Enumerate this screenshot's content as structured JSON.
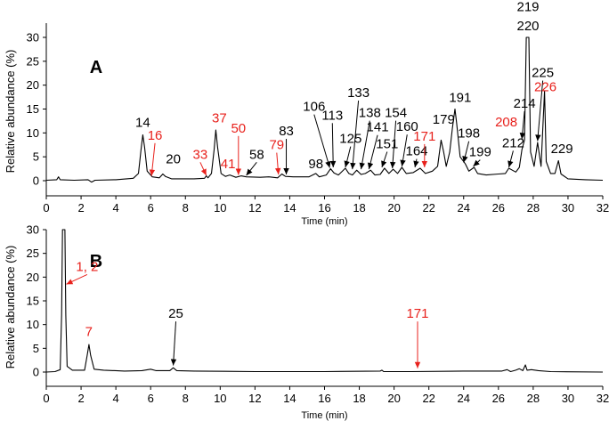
{
  "colors": {
    "trace": "#000000",
    "black_label": "#000000",
    "red_label": "#e8211c"
  },
  "chart_data": [
    {
      "type": "line",
      "panel_label": "A",
      "xlabel": "Time (min)",
      "ylabel": "Relative abundance (%)",
      "xlim": [
        0,
        32
      ],
      "ylim": [
        -3,
        30
      ],
      "xticks": [
        "0",
        "2",
        "4",
        "6",
        "8",
        "10",
        "12",
        "14",
        "16",
        "18",
        "20",
        "22",
        "24",
        "26",
        "28",
        "30",
        "32"
      ],
      "yticks": [
        "0",
        "5",
        "10",
        "15",
        "20",
        "25",
        "30"
      ],
      "grid": false,
      "trace_points": [
        [
          0.0,
          0.1
        ],
        [
          0.6,
          0.2
        ],
        [
          0.7,
          0.8
        ],
        [
          0.8,
          0.2
        ],
        [
          1.6,
          0.1
        ],
        [
          2.4,
          0.2
        ],
        [
          2.6,
          -0.3
        ],
        [
          2.8,
          0.1
        ],
        [
          4.0,
          0.2
        ],
        [
          5.0,
          0.5
        ],
        [
          5.3,
          1.5
        ],
        [
          5.45,
          6.5
        ],
        [
          5.55,
          9.6
        ],
        [
          5.65,
          7.0
        ],
        [
          5.8,
          2.0
        ],
        [
          6.1,
          0.8
        ],
        [
          6.5,
          0.6
        ],
        [
          6.7,
          1.4
        ],
        [
          6.85,
          0.9
        ],
        [
          7.2,
          0.4
        ],
        [
          8.5,
          0.4
        ],
        [
          9.1,
          0.5
        ],
        [
          9.2,
          1.0
        ],
        [
          9.3,
          0.6
        ],
        [
          9.5,
          1.5
        ],
        [
          9.65,
          6.5
        ],
        [
          9.75,
          10.6
        ],
        [
          9.85,
          7.0
        ],
        [
          10.05,
          1.5
        ],
        [
          10.3,
          0.9
        ],
        [
          10.55,
          1.2
        ],
        [
          10.9,
          0.7
        ],
        [
          11.2,
          1.0
        ],
        [
          11.5,
          0.8
        ],
        [
          12.3,
          0.7
        ],
        [
          12.8,
          0.8
        ],
        [
          13.3,
          0.6
        ],
        [
          13.55,
          1.4
        ],
        [
          13.75,
          0.9
        ],
        [
          14.2,
          0.8
        ],
        [
          15.1,
          0.8
        ],
        [
          15.5,
          1.5
        ],
        [
          15.7,
          0.8
        ],
        [
          16.1,
          1.2
        ],
        [
          16.35,
          2.5
        ],
        [
          16.55,
          1.6
        ],
        [
          16.8,
          1.2
        ],
        [
          17.2,
          2.6
        ],
        [
          17.4,
          1.5
        ],
        [
          17.6,
          1.2
        ],
        [
          17.85,
          2.2
        ],
        [
          18.1,
          1.3
        ],
        [
          18.35,
          1.5
        ],
        [
          18.65,
          2.2
        ],
        [
          18.9,
          1.2
        ],
        [
          19.2,
          1.3
        ],
        [
          19.45,
          2.6
        ],
        [
          19.7,
          1.5
        ],
        [
          19.95,
          2.4
        ],
        [
          20.2,
          1.5
        ],
        [
          20.45,
          2.8
        ],
        [
          20.7,
          1.5
        ],
        [
          21.1,
          1.7
        ],
        [
          21.5,
          2.6
        ],
        [
          21.8,
          1.5
        ],
        [
          22.2,
          2.0
        ],
        [
          22.5,
          3.0
        ],
        [
          22.7,
          8.5
        ],
        [
          22.85,
          6.0
        ],
        [
          23.0,
          3.0
        ],
        [
          23.2,
          6.0
        ],
        [
          23.35,
          11.0
        ],
        [
          23.5,
          15.0
        ],
        [
          23.6,
          12.0
        ],
        [
          23.8,
          5.0
        ],
        [
          24.1,
          3.5
        ],
        [
          24.3,
          2.0
        ],
        [
          24.6,
          2.8
        ],
        [
          24.8,
          1.5
        ],
        [
          25.3,
          1.2
        ],
        [
          26.0,
          1.4
        ],
        [
          26.4,
          1.5
        ],
        [
          26.6,
          2.6
        ],
        [
          26.8,
          2.2
        ],
        [
          27.0,
          1.8
        ],
        [
          27.2,
          2.8
        ],
        [
          27.35,
          6.5
        ],
        [
          27.5,
          8.5
        ],
        [
          27.6,
          30
        ],
        [
          27.75,
          30
        ],
        [
          27.85,
          6.0
        ],
        [
          28.05,
          3.0
        ],
        [
          28.25,
          8.0
        ],
        [
          28.45,
          3.0
        ],
        [
          28.65,
          18.8
        ],
        [
          28.75,
          4.0
        ],
        [
          29.0,
          1.5
        ],
        [
          29.25,
          1.5
        ],
        [
          29.45,
          4.2
        ],
        [
          29.6,
          1.4
        ],
        [
          30.0,
          0.4
        ],
        [
          31.0,
          0.2
        ],
        [
          32.0,
          0.1
        ]
      ],
      "annotations": [
        {
          "text": "14",
          "color": "black",
          "lx": 5.55,
          "ly": 11.3,
          "arrow": false
        },
        {
          "text": "16",
          "color": "red",
          "lx": 6.25,
          "ly": 8.6,
          "arrow": true,
          "ax": 6.05,
          "ay": 1.0
        },
        {
          "text": "20",
          "color": "black",
          "lx": 7.3,
          "ly": 3.6,
          "arrow": false
        },
        {
          "text": "33",
          "color": "red",
          "lx": 8.85,
          "ly": 4.6,
          "arrow": true,
          "ax": 9.2,
          "ay": 1.1
        },
        {
          "text": "37",
          "color": "red",
          "lx": 9.95,
          "ly": 12.2,
          "arrow": false
        },
        {
          "text": "41",
          "color": "red",
          "lx": 10.45,
          "ly": 2.6,
          "arrow": false
        },
        {
          "text": "50",
          "color": "red",
          "lx": 11.05,
          "ly": 10.1,
          "arrow": true,
          "ax": 11.05,
          "ay": 1.2
        },
        {
          "text": "58",
          "color": "black",
          "lx": 12.1,
          "ly": 4.6,
          "arrow": true,
          "ax": 11.5,
          "ay": 1.1
        },
        {
          "text": "79",
          "color": "red",
          "lx": 13.25,
          "ly": 6.6,
          "arrow": true,
          "ax": 13.35,
          "ay": 1.3
        },
        {
          "text": "83",
          "color": "black",
          "lx": 13.8,
          "ly": 9.5,
          "arrow": true,
          "ax": 13.8,
          "ay": 1.3
        },
        {
          "text": "98",
          "color": "black",
          "lx": 15.5,
          "ly": 2.6,
          "arrow": false
        },
        {
          "text": "106",
          "color": "black",
          "lx": 15.4,
          "ly": 14.6,
          "arrow": true,
          "ax": 16.3,
          "ay": 2.7
        },
        {
          "text": "113",
          "color": "black",
          "lx": 16.45,
          "ly": 12.8,
          "arrow": true,
          "ax": 16.5,
          "ay": 2.8
        },
        {
          "text": "125",
          "color": "black",
          "lx": 17.5,
          "ly": 7.9,
          "arrow": true,
          "ax": 17.2,
          "ay": 2.8
        },
        {
          "text": "133",
          "color": "black",
          "lx": 17.95,
          "ly": 17.5,
          "arrow": true,
          "ax": 17.6,
          "ay": 2.4
        },
        {
          "text": "138",
          "color": "black",
          "lx": 18.6,
          "ly": 13.3,
          "arrow": true,
          "ax": 18.1,
          "ay": 2.4
        },
        {
          "text": "141",
          "color": "black",
          "lx": 19.05,
          "ly": 10.3,
          "arrow": true,
          "ax": 18.55,
          "ay": 2.4
        },
        {
          "text": "151",
          "color": "black",
          "lx": 19.6,
          "ly": 6.8,
          "arrow": true,
          "ax": 19.3,
          "ay": 2.8
        },
        {
          "text": "154",
          "color": "black",
          "lx": 20.1,
          "ly": 13.3,
          "arrow": true,
          "ax": 19.9,
          "ay": 2.6
        },
        {
          "text": "160",
          "color": "black",
          "lx": 20.75,
          "ly": 10.4,
          "arrow": true,
          "ax": 20.45,
          "ay": 3.0
        },
        {
          "text": "164",
          "color": "black",
          "lx": 21.3,
          "ly": 5.3,
          "arrow": true,
          "ax": 21.2,
          "ay": 2.8
        },
        {
          "text": "171",
          "color": "red",
          "lx": 21.75,
          "ly": 8.4,
          "arrow": true,
          "ax": 21.75,
          "ay": 2.8
        },
        {
          "text": "179",
          "color": "black",
          "lx": 22.85,
          "ly": 11.9,
          "arrow": false
        },
        {
          "text": "191",
          "color": "black",
          "lx": 23.8,
          "ly": 16.5,
          "arrow": false
        },
        {
          "text": "198",
          "color": "black",
          "lx": 24.3,
          "ly": 9.0,
          "arrow": true,
          "ax": 24.0,
          "ay": 3.8
        },
        {
          "text": "199",
          "color": "black",
          "lx": 24.95,
          "ly": 5.1,
          "arrow": true,
          "ax": 24.55,
          "ay": 3.0
        },
        {
          "text": "208",
          "color": "red",
          "lx": 26.45,
          "ly": 11.4,
          "arrow": false
        },
        {
          "text": "212",
          "color": "black",
          "lx": 26.85,
          "ly": 7.0,
          "arrow": true,
          "ax": 26.6,
          "ay": 2.8
        },
        {
          "text": "214",
          "color": "black",
          "lx": 27.5,
          "ly": 15.3,
          "arrow": true,
          "ax": 27.35,
          "ay": 8.7
        },
        {
          "text": "219",
          "color": "black",
          "lx": 27.7,
          "ly": 35.5,
          "arrow": false
        },
        {
          "text": "220",
          "color": "black",
          "lx": 27.7,
          "ly": 31.5,
          "arrow": false
        },
        {
          "text": "225",
          "color": "black",
          "lx": 28.55,
          "ly": 21.7,
          "arrow": true,
          "ax": 28.25,
          "ay": 8.3
        },
        {
          "text": "226",
          "color": "red",
          "lx": 28.7,
          "ly": 18.7,
          "arrow": false
        },
        {
          "text": "229",
          "color": "black",
          "lx": 29.65,
          "ly": 5.8,
          "arrow": false
        }
      ],
      "red_arrows": [
        [
          6.05,
          1.0
        ],
        [
          9.2,
          1.1
        ],
        [
          11.05,
          1.2
        ],
        [
          13.35,
          1.3
        ],
        [
          21.75,
          2.8
        ],
        [
          26.6,
          2.8
        ]
      ]
    },
    {
      "type": "line",
      "panel_label": "B",
      "xlabel": "Time (min)",
      "ylabel": "Relative abundance (%)",
      "xlim": [
        0,
        32
      ],
      "ylim": [
        -3,
        30
      ],
      "xticks": [
        "0",
        "2",
        "4",
        "6",
        "8",
        "10",
        "12",
        "14",
        "16",
        "18",
        "20",
        "22",
        "24",
        "26",
        "28",
        "30",
        "32"
      ],
      "yticks": [
        "0",
        "5",
        "10",
        "15",
        "20",
        "25",
        "30"
      ],
      "grid": false,
      "trace_points": [
        [
          0.0,
          0.0
        ],
        [
          0.5,
          0.1
        ],
        [
          0.8,
          0.5
        ],
        [
          0.88,
          12.0
        ],
        [
          0.93,
          30
        ],
        [
          1.07,
          30
        ],
        [
          1.12,
          12.0
        ],
        [
          1.2,
          1.2
        ],
        [
          1.5,
          0.4
        ],
        [
          2.2,
          0.4
        ],
        [
          2.35,
          3.5
        ],
        [
          2.45,
          5.8
        ],
        [
          2.55,
          3.5
        ],
        [
          2.75,
          0.6
        ],
        [
          3.3,
          0.4
        ],
        [
          4.5,
          0.2
        ],
        [
          5.5,
          0.3
        ],
        [
          6.0,
          0.6
        ],
        [
          6.3,
          0.3
        ],
        [
          7.1,
          0.3
        ],
        [
          7.3,
          0.9
        ],
        [
          7.5,
          0.3
        ],
        [
          8.5,
          0.2
        ],
        [
          12.0,
          0.1
        ],
        [
          16.0,
          0.1
        ],
        [
          19.2,
          0.2
        ],
        [
          19.3,
          0.4
        ],
        [
          19.4,
          0.1
        ],
        [
          21.0,
          0.1
        ],
        [
          24.0,
          0.2
        ],
        [
          26.2,
          0.2
        ],
        [
          26.5,
          0.5
        ],
        [
          26.7,
          0.1
        ],
        [
          27.0,
          0.4
        ],
        [
          27.2,
          0.7
        ],
        [
          27.4,
          0.3
        ],
        [
          27.55,
          1.5
        ],
        [
          27.65,
          0.4
        ],
        [
          27.9,
          0.5
        ],
        [
          28.3,
          0.3
        ],
        [
          29.0,
          0.1
        ],
        [
          32.0,
          0.0
        ]
      ],
      "annotations": [
        {
          "text": "1, 2",
          "color": "red",
          "lx": 2.35,
          "ly": 21.3,
          "arrow": true,
          "ax": 1.15,
          "ay": 18.5
        },
        {
          "text": "7",
          "color": "red",
          "lx": 2.45,
          "ly": 7.6,
          "arrow": false
        },
        {
          "text": "25",
          "color": "black",
          "lx": 7.45,
          "ly": 11.4,
          "arrow": true,
          "ax": 7.3,
          "ay": 1.4
        },
        {
          "text": "171",
          "color": "red",
          "lx": 21.35,
          "ly": 11.4,
          "arrow": true,
          "ax": 21.35,
          "ay": 0.8
        }
      ],
      "red_arrows": [
        [
          1.15,
          18.5
        ],
        [
          21.35,
          0.8
        ]
      ]
    }
  ]
}
